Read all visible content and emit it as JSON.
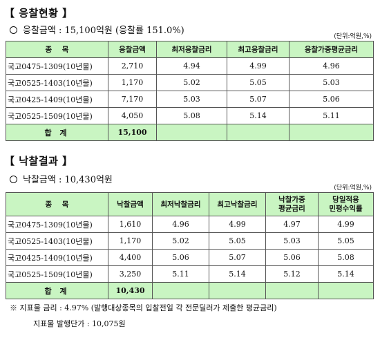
{
  "bid_section": {
    "title": "【 응찰현황 】",
    "amount_line": "응찰금액 : 15,100억원 (응찰률 151.0%)",
    "unit": "(단위:억원,%)",
    "headers": [
      "종    목",
      "응찰금액",
      "최저응찰금리",
      "최고응찰금리",
      "응찰가중평균금리"
    ],
    "rows": [
      [
        "국고0475-1309(10년물)",
        "2,710",
        "4.94",
        "4.99",
        "4.96"
      ],
      [
        "국고0525-1403(10년물)",
        "1,170",
        "5.02",
        "5.05",
        "5.03"
      ],
      [
        "국고0425-1409(10년물)",
        "7,170",
        "5.03",
        "5.07",
        "5.06"
      ],
      [
        "국고0525-1509(10년물)",
        "4,050",
        "5.08",
        "5.14",
        "5.11"
      ]
    ],
    "total_label": "합 계",
    "total_value": "15,100"
  },
  "award_section": {
    "title": "【 낙찰결과 】",
    "amount_line": "낙찰금액 : 10,430억원",
    "unit": "(단위:억원,%)",
    "headers": [
      "종    목",
      "낙찰금액",
      "최저낙찰금리",
      "최고낙찰금리",
      "낙찰가중\n평균금리",
      "당일적용\n민평수익률"
    ],
    "rows": [
      [
        "국고0475-1309(10년물)",
        "1,610",
        "4.96",
        "4.99",
        "4.97",
        "4.99"
      ],
      [
        "국고0525-1403(10년물)",
        "1,170",
        "5.02",
        "5.05",
        "5.03",
        "5.05"
      ],
      [
        "국고0425-1409(10년물)",
        "4,400",
        "5.06",
        "5.07",
        "5.06",
        "5.08"
      ],
      [
        "국고0525-1509(10년물)",
        "3,250",
        "5.11",
        "5.14",
        "5.12",
        "5.14"
      ]
    ],
    "total_label": "합 계",
    "total_value": "10,430"
  },
  "notes": {
    "line1": "※  지표물 금리 : 4.97% (발행대상종목의 입찰전일 각 전문딜러가 제출한 평균금리)",
    "line2": "지표물 발행단가 : 10,075원"
  }
}
